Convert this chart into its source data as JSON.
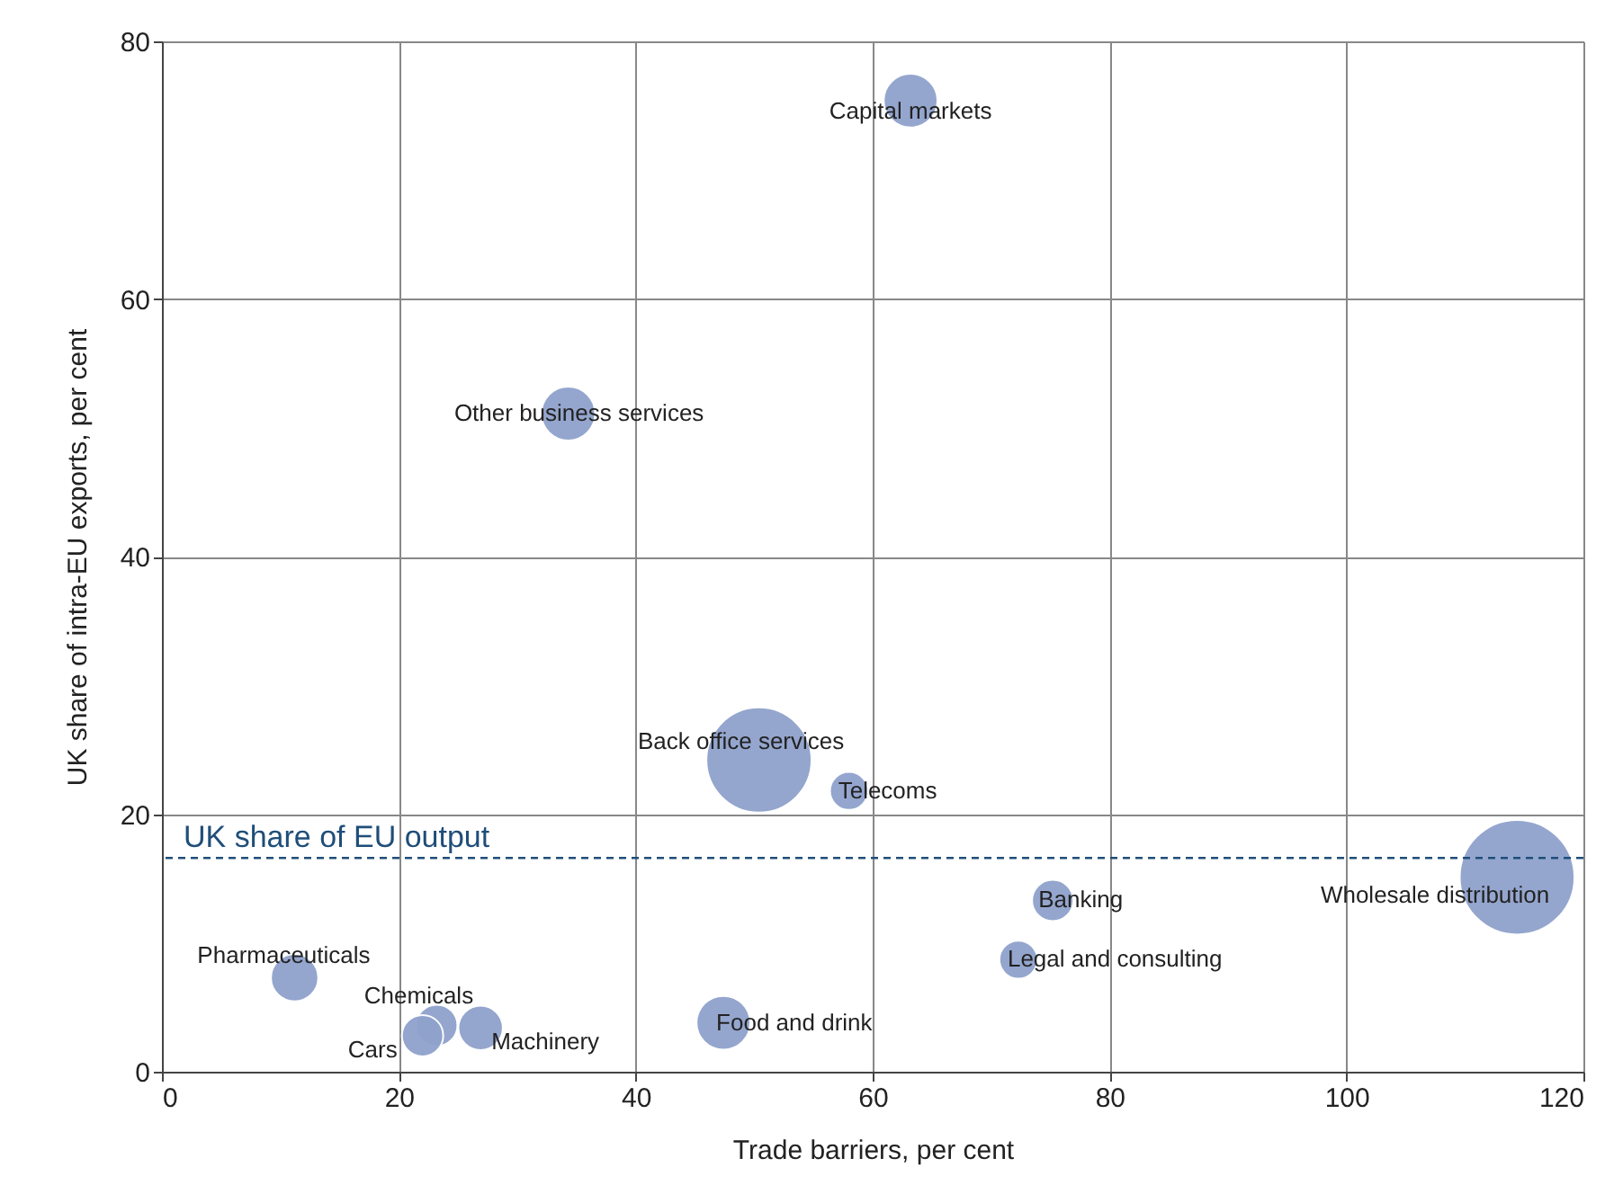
{
  "chart_data": {
    "type": "bubble",
    "xlabel": "Trade barriers, per cent",
    "ylabel": "UK share of intra-EU exports, per cent",
    "x": [
      63.2,
      34.3,
      50.4,
      58.0,
      75.2,
      114.4,
      72.3,
      47.4,
      11.2,
      23.2,
      22.0,
      26.9
    ],
    "series": [
      {
        "color": "#8fa2cc",
        "values": [
          75.4,
          51.1,
          24.2,
          21.8,
          13.3,
          15.1,
          8.7,
          3.8,
          7.3,
          3.6,
          2.8,
          3.4
        ],
        "sizes": [
          0.22,
          0.22,
          0.84,
          0.11,
          0.13,
          1,
          0.11,
          0.22,
          0.17,
          0.13,
          0.13,
          0.15
        ]
      }
    ],
    "annotations": [
      {
        "text": "Capital markets",
        "x": 63.2,
        "y": 75.4
      },
      {
        "text": "Other business services",
        "x": 34.3,
        "y": 51.1
      },
      {
        "text": "Back office services",
        "x": 50.4,
        "y": 24.2
      },
      {
        "text": "Telecoms",
        "x": 58.0,
        "y": 21.8
      },
      {
        "text": "Banking",
        "x": 75.2,
        "y": 13.3
      },
      {
        "text": "Wholesale distribution",
        "x": 114.4,
        "y": 15.1
      },
      {
        "text": "Legal and consulting",
        "x": 72.3,
        "y": 8.7
      },
      {
        "text": "Food and drink",
        "x": 47.4,
        "y": 3.8
      },
      {
        "text": "Pharmaceuticals",
        "x": 11.2,
        "y": 7.3
      },
      {
        "text": "Chemicals",
        "x": 23.2,
        "y": 3.6
      },
      {
        "text": "Cars",
        "x": 22.0,
        "y": 2.8
      },
      {
        "text": "Machinery",
        "x": 26.9,
        "y": 3.4
      }
    ],
    "ref_lines": [
      {
        "axis": "y",
        "value": 16.6,
        "label": "UK share of EU output",
        "color": "#1f4e79",
        "line_style": "dashed"
      }
    ],
    "xlim": [
      0,
      120
    ],
    "xticks": [
      0,
      20,
      40,
      60,
      80,
      100,
      120
    ],
    "ylim": [
      0,
      80
    ],
    "yticks": [
      0,
      20,
      40,
      60,
      80
    ],
    "grid": true
  }
}
